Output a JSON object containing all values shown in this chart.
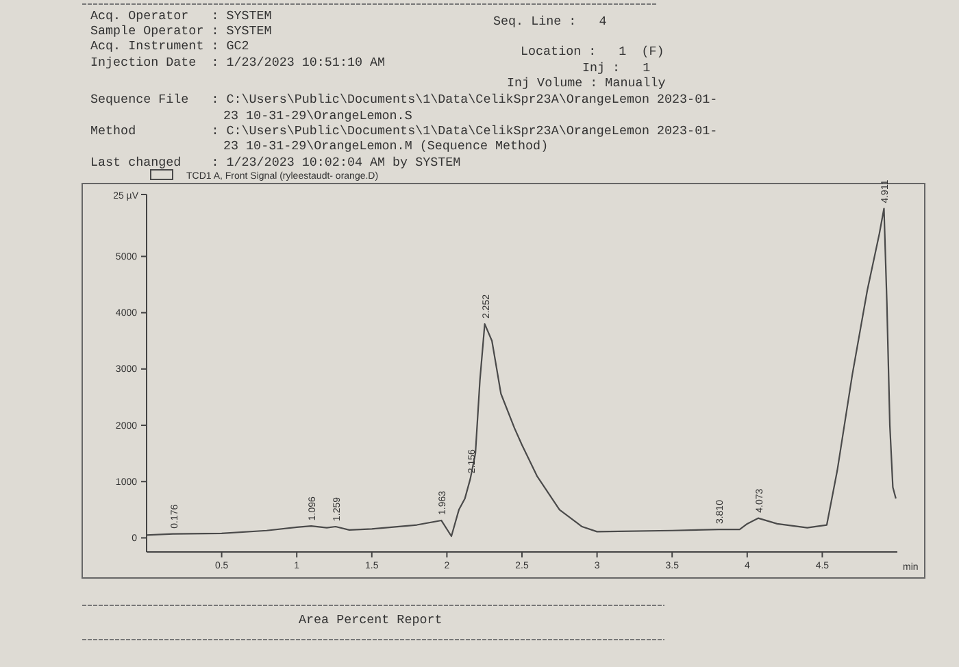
{
  "chart_data": {
    "type": "line",
    "xlabel": "min",
    "legend": "top left",
    "marker": "none",
    "line_style": "solid",
    "grid": false,
    "xlim": [
      0,
      5
    ],
    "xticks": [
      0.5,
      1,
      1.5,
      2,
      2.5,
      3,
      3.5,
      4,
      4.5
    ],
    "ylabel": "25 µV",
    "ylim": [
      -250,
      6100
    ],
    "yticks": [
      0,
      1000,
      2000,
      3000,
      4000,
      5000
    ],
    "series": [
      {
        "name": "TCD1 A, Front Signal (ryleestaudt- orange.D)",
        "color": "#4a4a4a",
        "x": [
          0,
          0.176,
          0.5,
          0.8,
          1.0,
          1.096,
          1.2,
          1.259,
          1.35,
          1.5,
          1.8,
          1.963,
          2.03,
          2.08,
          2.12,
          2.156,
          2.19,
          2.22,
          2.252,
          2.3,
          2.36,
          2.45,
          2.5,
          2.6,
          2.75,
          2.9,
          3.0,
          3.5,
          3.81,
          3.95,
          4.0,
          4.073,
          4.2,
          4.4,
          4.53,
          4.6,
          4.7,
          4.8,
          4.88,
          4.911,
          4.93,
          4.95,
          4.97,
          4.99
        ],
        "values": [
          50,
          70,
          80,
          130,
          190,
          210,
          180,
          200,
          140,
          160,
          230,
          310,
          30,
          500,
          700,
          1050,
          1500,
          2800,
          3800,
          3500,
          2560,
          1950,
          1650,
          1100,
          500,
          200,
          110,
          130,
          150,
          150,
          250,
          350,
          250,
          180,
          230,
          1200,
          2900,
          4400,
          5400,
          5850,
          4200,
          2000,
          900,
          700
        ]
      }
    ],
    "annotations": [
      "Acq. Operator   : SYSTEM",
      "Sample Operator : SYSTEM",
      "Acq. Instrument : GC2",
      "Injection Date  : 1/23/2023 10:51:10 AM",
      "Seq. Line :   4",
      "Location :   1  (F)",
      "Inj :   1",
      "Inj Volume : Manually",
      "Sequence File   : C:\\Users\\Public\\Documents\\1\\Data\\CelikSpr23A\\OrangeLemon 2023-01-",
      "23 10-31-29\\OrangeLemon.S",
      "Method          : C:\\Users\\Public\\Documents\\1\\Data\\CelikSpr23A\\OrangeLemon 2023-01-",
      "23 10-31-29\\OrangeLemon.M (Sequence Method)",
      "Last changed    : 1/23/2023 10:02:04 AM by SYSTEM",
      "Area Percent Report",
      {
        "text": "0.176",
        "x": 0.176,
        "y": 70
      },
      {
        "text": "1.096",
        "x": 1.096,
        "y": 210
      },
      {
        "text": "1.259",
        "x": 1.259,
        "y": 200
      },
      {
        "text": "1.963",
        "x": 1.963,
        "y": 310
      },
      {
        "text": "2.156",
        "x": 2.156,
        "y": 1050
      },
      {
        "text": "2.252",
        "x": 2.252,
        "y": 3800
      },
      {
        "text": "3.810",
        "x": 3.81,
        "y": 150
      },
      {
        "text": "4.073",
        "x": 4.073,
        "y": 350
      },
      {
        "text": "4.911",
        "x": 4.911,
        "y": 5850
      }
    ]
  }
}
